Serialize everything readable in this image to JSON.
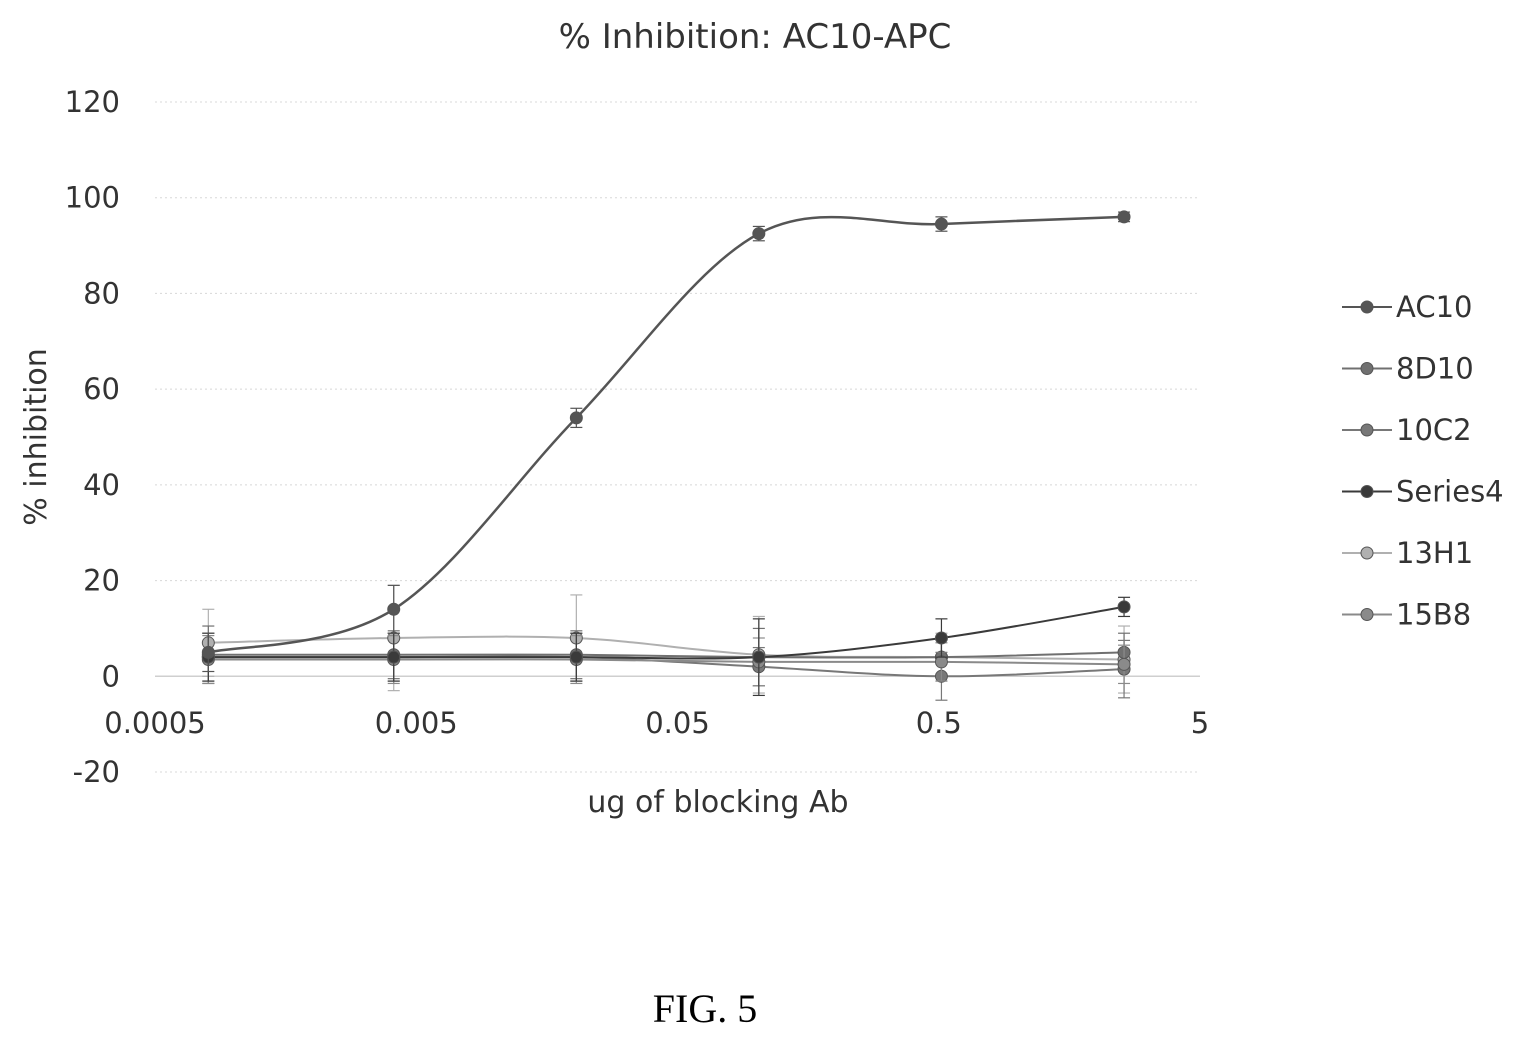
{
  "chart_data": {
    "type": "line",
    "title": "% Inhibition: AC10-APC",
    "xlabel": "ug of blocking Ab",
    "ylabel": "% inhibition",
    "x_scale": "log",
    "x_ticks": [
      "0.0005",
      "0.005",
      "0.05",
      "0.5",
      "5"
    ],
    "y_ticks": [
      "120",
      "100",
      "80",
      "60",
      "40",
      "20",
      "0",
      "-20"
    ],
    "xlim": [
      0.0005,
      5
    ],
    "ylim": [
      -20,
      120
    ],
    "legend_position": "right",
    "x": [
      0.0008,
      0.0041,
      0.0205,
      0.1024,
      0.512,
      2.56
    ],
    "series": [
      {
        "name": "AC10",
        "values": [
          5,
          14,
          54,
          92.5,
          94.5,
          96
        ],
        "errors": [
          4,
          5,
          2,
          1.5,
          1.5,
          1
        ],
        "color": "#555555",
        "width": 2.5
      },
      {
        "name": "8D10",
        "values": [
          4.5,
          4.5,
          4.5,
          4,
          4,
          5
        ],
        "errors": [
          6,
          5,
          5,
          6,
          4,
          4
        ],
        "color": "#707070",
        "width": 2
      },
      {
        "name": "10C2",
        "values": [
          4,
          4,
          4,
          2,
          0,
          1.5
        ],
        "errors": [
          5,
          5,
          5,
          4,
          5,
          6
        ],
        "color": "#787878",
        "width": 2
      },
      {
        "name": "Series4",
        "values": [
          4,
          4,
          4,
          4,
          8,
          14.5
        ],
        "errors": [
          5,
          5,
          5,
          8,
          4,
          2
        ],
        "color": "#3a3a3a",
        "width": 2
      },
      {
        "name": "13H1",
        "values": [
          7,
          8,
          8,
          4.5,
          4,
          3.5
        ],
        "errors": [
          7,
          11,
          9,
          8,
          5,
          7
        ],
        "color": "#b0b0b0",
        "width": 2
      },
      {
        "name": "15B8",
        "values": [
          3.5,
          3.5,
          3.5,
          3,
          3,
          2.5
        ],
        "errors": [
          5,
          5,
          5,
          5,
          4,
          4
        ],
        "color": "#8a8a8a",
        "width": 2
      }
    ]
  },
  "caption": "FIG. 5"
}
